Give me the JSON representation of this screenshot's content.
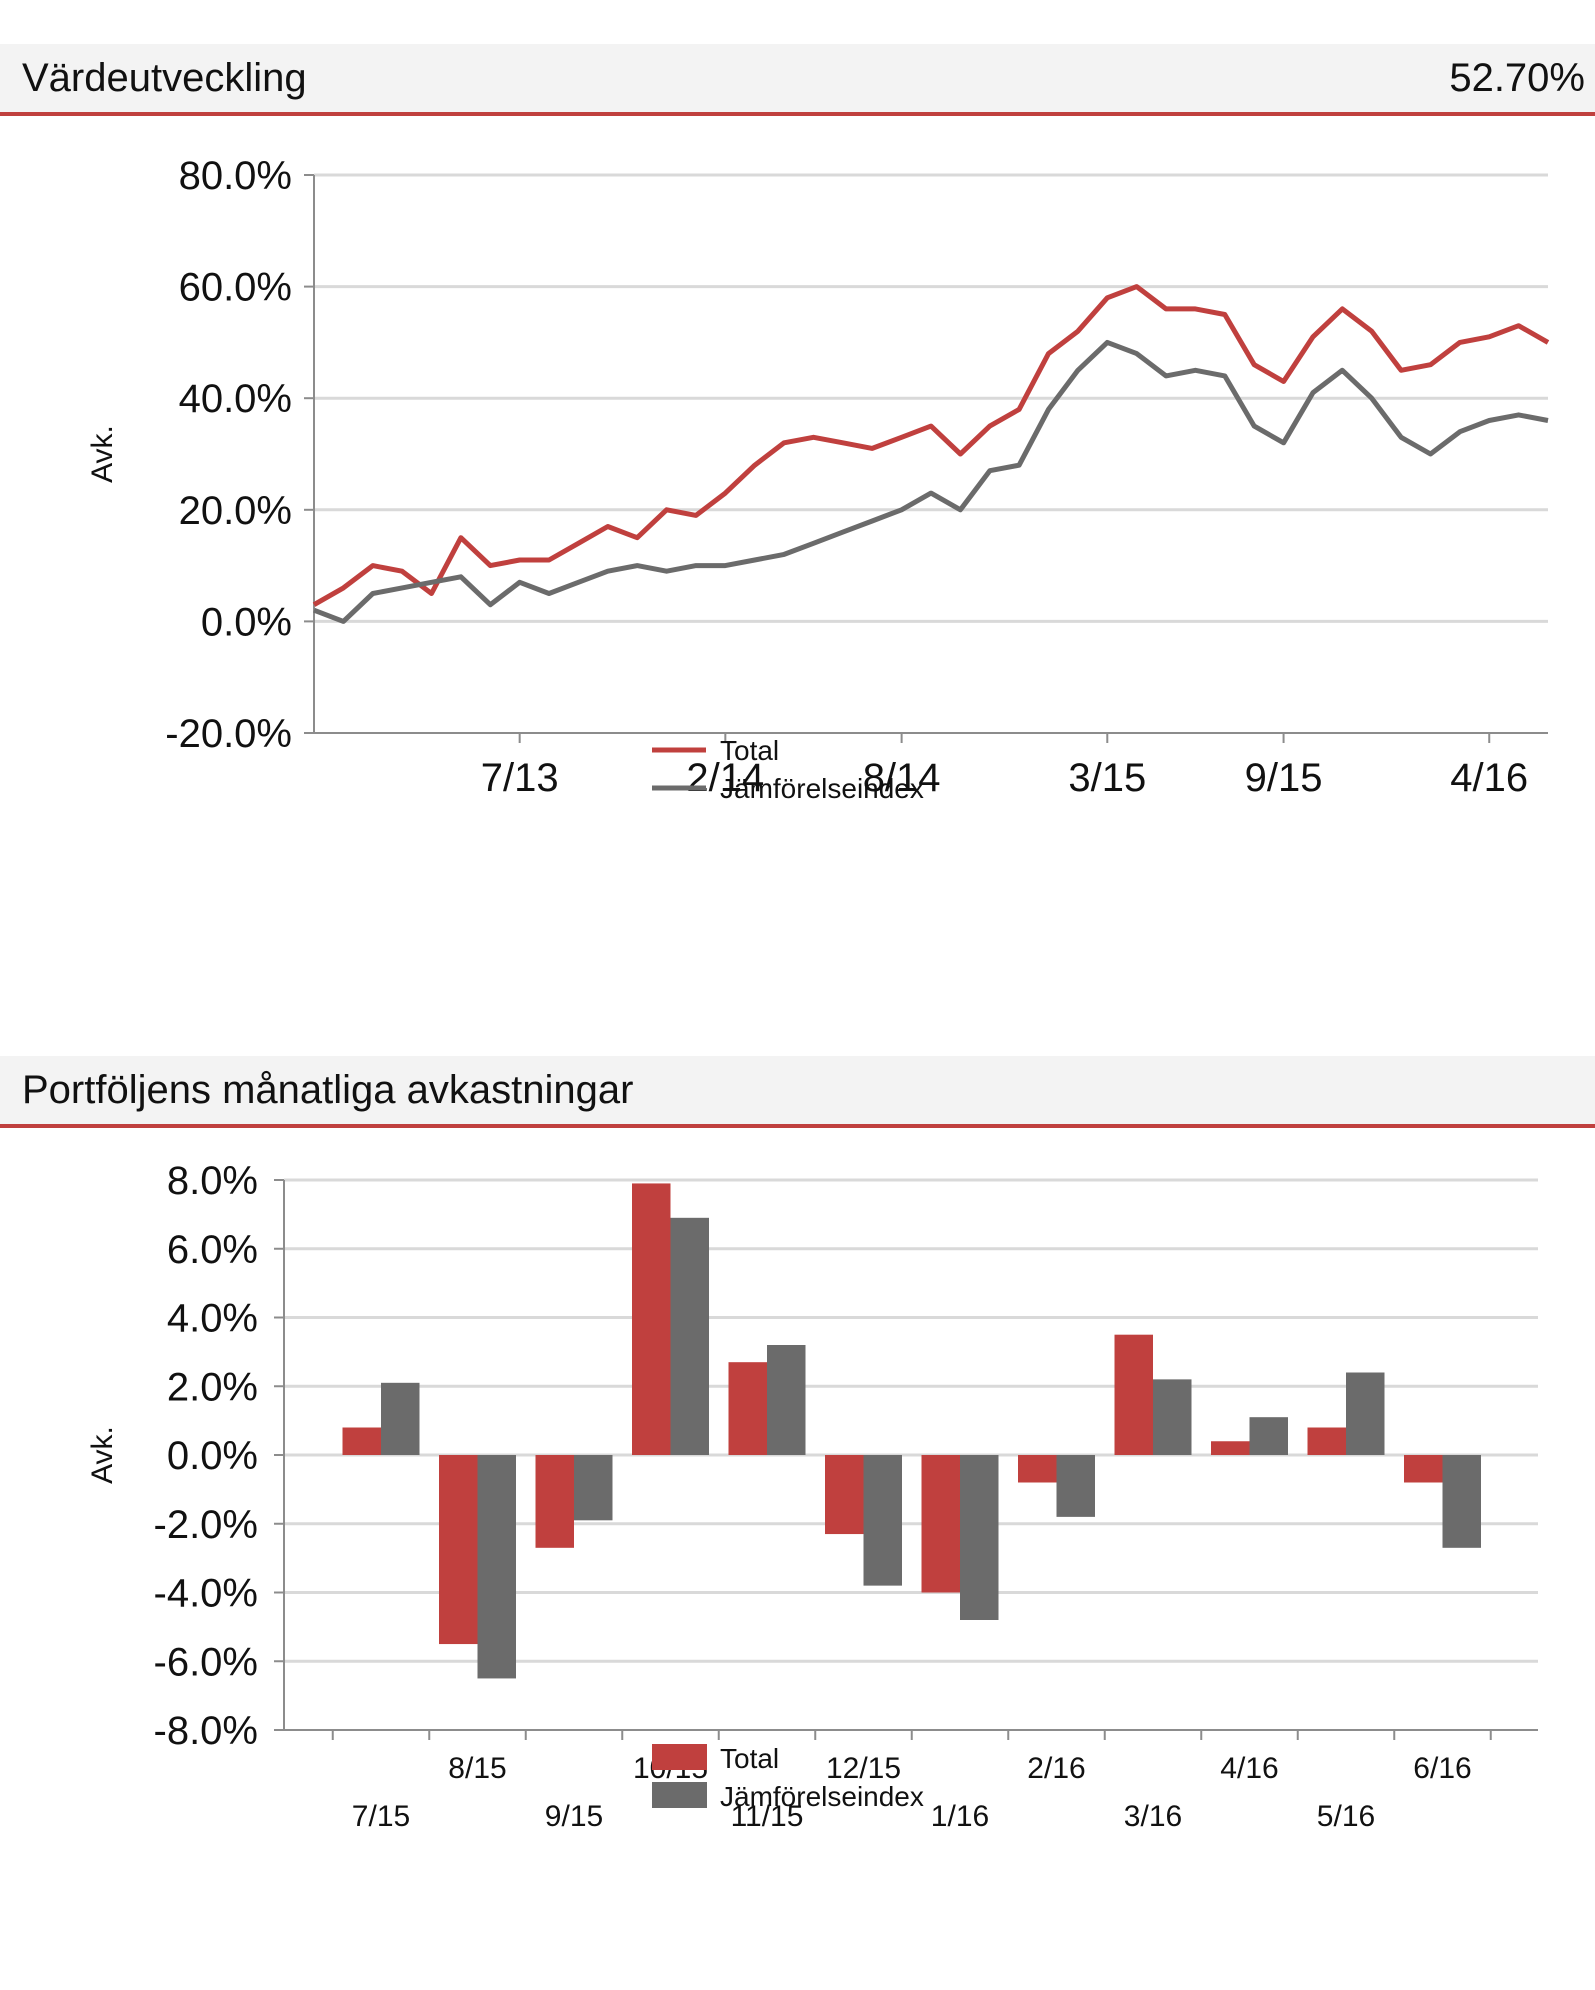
{
  "colors": {
    "total": "#c0403e",
    "index": "#6b6b6b",
    "grid": "#d9d9d9",
    "axis": "#8c8c8c",
    "header_bg": "#f3f3f3",
    "header_rule": "#c0403e"
  },
  "section1": {
    "title": "Värdeutveckling",
    "value": "52.70%"
  },
  "section2": {
    "title": "Portföljens månatliga avkastningar"
  },
  "chart_data": [
    {
      "type": "line",
      "title": "Värdeutveckling",
      "ylabel": "Avk.",
      "ylim": [
        -20,
        80
      ],
      "yticks": [
        80,
        60,
        40,
        20,
        0,
        -20
      ],
      "ytick_labels": [
        "80.0%",
        "60.0%",
        "40.0%",
        "20.0%",
        "0.0%",
        "-20.0%"
      ],
      "x_range": [
        "2012-12",
        "2016-06"
      ],
      "xticks": [
        "2013-07",
        "2014-02",
        "2014-08",
        "2015-03",
        "2015-09",
        "2016-04"
      ],
      "xtick_labels": [
        "7/13",
        "2/14",
        "8/14",
        "3/15",
        "9/15",
        "4/16"
      ],
      "grid": true,
      "legend": "bottom-center",
      "series": [
        {
          "name": "Total",
          "points": [
            [
              "2012-12",
              3
            ],
            [
              "2013-01",
              6
            ],
            [
              "2013-02",
              10
            ],
            [
              "2013-03",
              9
            ],
            [
              "2013-04",
              5
            ],
            [
              "2013-05",
              15
            ],
            [
              "2013-06",
              10
            ],
            [
              "2013-07",
              11
            ],
            [
              "2013-08",
              11
            ],
            [
              "2013-09",
              14
            ],
            [
              "2013-10",
              17
            ],
            [
              "2013-11",
              15
            ],
            [
              "2013-12",
              20
            ],
            [
              "2014-01",
              19
            ],
            [
              "2014-02",
              23
            ],
            [
              "2014-03",
              28
            ],
            [
              "2014-04",
              32
            ],
            [
              "2014-05",
              33
            ],
            [
              "2014-06",
              32
            ],
            [
              "2014-07",
              31
            ],
            [
              "2014-08",
              33
            ],
            [
              "2014-09",
              35
            ],
            [
              "2014-10",
              30
            ],
            [
              "2014-11",
              35
            ],
            [
              "2014-12",
              38
            ],
            [
              "2015-01",
              48
            ],
            [
              "2015-02",
              52
            ],
            [
              "2015-03",
              58
            ],
            [
              "2015-04",
              60
            ],
            [
              "2015-05",
              56
            ],
            [
              "2015-06",
              56
            ],
            [
              "2015-07",
              55
            ],
            [
              "2015-08",
              46
            ],
            [
              "2015-09",
              43
            ],
            [
              "2015-10",
              51
            ],
            [
              "2015-11",
              56
            ],
            [
              "2015-12",
              52
            ],
            [
              "2016-01",
              45
            ],
            [
              "2016-02",
              46
            ],
            [
              "2016-03",
              50
            ],
            [
              "2016-04",
              51
            ],
            [
              "2016-05",
              53
            ],
            [
              "2016-06",
              50
            ]
          ]
        },
        {
          "name": "Jämförelseindex",
          "points": [
            [
              "2012-12",
              2
            ],
            [
              "2013-01",
              0
            ],
            [
              "2013-02",
              5
            ],
            [
              "2013-03",
              6
            ],
            [
              "2013-04",
              7
            ],
            [
              "2013-05",
              8
            ],
            [
              "2013-06",
              3
            ],
            [
              "2013-07",
              7
            ],
            [
              "2013-08",
              5
            ],
            [
              "2013-09",
              7
            ],
            [
              "2013-10",
              9
            ],
            [
              "2013-11",
              10
            ],
            [
              "2013-12",
              9
            ],
            [
              "2014-01",
              10
            ],
            [
              "2014-02",
              10
            ],
            [
              "2014-03",
              11
            ],
            [
              "2014-04",
              12
            ],
            [
              "2014-05",
              14
            ],
            [
              "2014-06",
              16
            ],
            [
              "2014-07",
              18
            ],
            [
              "2014-08",
              20
            ],
            [
              "2014-09",
              23
            ],
            [
              "2014-10",
              20
            ],
            [
              "2014-11",
              27
            ],
            [
              "2014-12",
              28
            ],
            [
              "2015-01",
              38
            ],
            [
              "2015-02",
              45
            ],
            [
              "2015-03",
              50
            ],
            [
              "2015-04",
              48
            ],
            [
              "2015-05",
              44
            ],
            [
              "2015-06",
              45
            ],
            [
              "2015-07",
              44
            ],
            [
              "2015-08",
              35
            ],
            [
              "2015-09",
              32
            ],
            [
              "2015-10",
              41
            ],
            [
              "2015-11",
              45
            ],
            [
              "2015-12",
              40
            ],
            [
              "2016-01",
              33
            ],
            [
              "2016-02",
              30
            ],
            [
              "2016-03",
              34
            ],
            [
              "2016-04",
              36
            ],
            [
              "2016-05",
              37
            ],
            [
              "2016-06",
              36
            ]
          ]
        }
      ]
    },
    {
      "type": "bar",
      "title": "Portföljens månatliga avkastningar",
      "ylabel": "Avk.",
      "ylim": [
        -8,
        8
      ],
      "yticks": [
        8,
        6,
        4,
        2,
        0,
        -2,
        -4,
        -6,
        -8
      ],
      "ytick_labels": [
        "8.0%",
        "6.0%",
        "4.0%",
        "2.0%",
        "0.0%",
        "-2.0%",
        "-4.0%",
        "-6.0%",
        "-8.0%"
      ],
      "categories": [
        "7/15",
        "8/15",
        "9/15",
        "10/15",
        "11/15",
        "12/15",
        "1/16",
        "2/16",
        "3/16",
        "4/16",
        "5/16",
        "6/16"
      ],
      "grid": true,
      "legend": "bottom-center",
      "series": [
        {
          "name": "Total",
          "values": [
            0.8,
            -5.5,
            -2.7,
            7.9,
            2.7,
            -2.3,
            -4.0,
            -0.8,
            3.5,
            0.4,
            0.8,
            -0.8
          ]
        },
        {
          "name": "Jämförelseindex",
          "values": [
            2.1,
            -6.5,
            -1.9,
            6.9,
            3.2,
            -3.8,
            -4.8,
            -1.8,
            2.2,
            1.1,
            2.4,
            -2.7
          ]
        }
      ]
    }
  ]
}
